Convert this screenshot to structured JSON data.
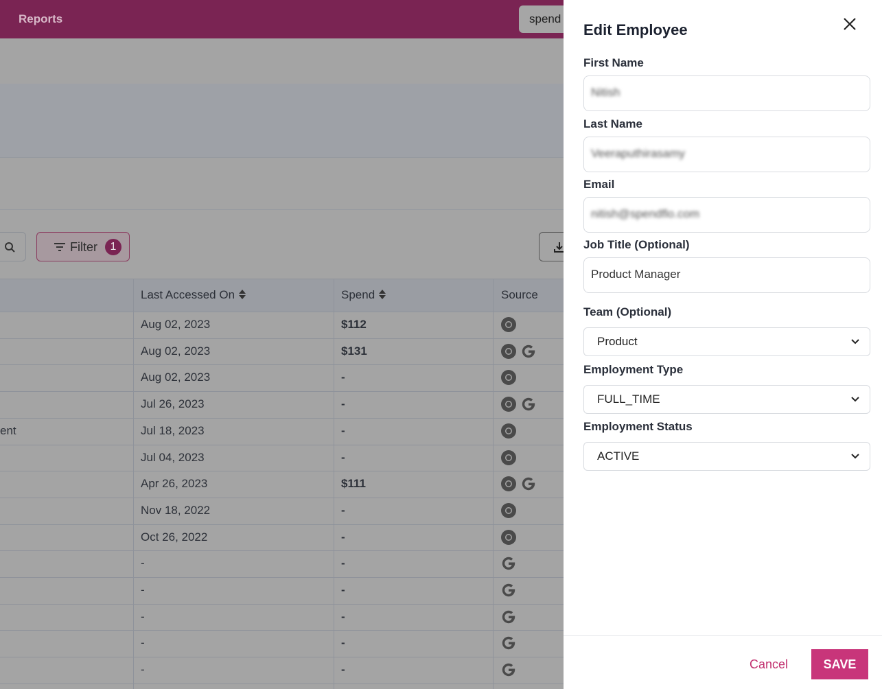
{
  "topbar": {
    "nav": "Reports",
    "search": "spend"
  },
  "toolbar": {
    "filter": "Filter",
    "filter_count": "1"
  },
  "table": {
    "headers": [
      "Last Accessed On",
      "Spend",
      "Source"
    ],
    "rows": [
      {
        "date": "Aug 02, 2023",
        "spend": "$112"
      },
      {
        "date": "Aug 02, 2023",
        "spend": "$131"
      },
      {
        "date": "Aug 02, 2023",
        "spend": "-"
      },
      {
        "date": "Jul 26, 2023",
        "spend": "-"
      },
      {
        "name": "ent",
        "date": "Jul 18, 2023",
        "spend": "-"
      },
      {
        "date": "Jul 04, 2023",
        "spend": "-"
      },
      {
        "date": "Apr 26, 2023",
        "spend": "$111"
      },
      {
        "date": "Nov 18, 2022",
        "spend": "-"
      },
      {
        "date": "Oct 26, 2022",
        "spend": "-"
      },
      {
        "date": "-",
        "spend": "-"
      },
      {
        "date": "-",
        "spend": "-"
      },
      {
        "date": "-",
        "spend": "-"
      },
      {
        "date": "-",
        "spend": "-"
      },
      {
        "date": "-",
        "spend": "-"
      }
    ]
  },
  "panel": {
    "title": "Edit Employee",
    "inputs": [
      {
        "label": "First Name",
        "value": "Nitish"
      },
      {
        "label": "Last Name",
        "value": "Veeraputhirasamy"
      },
      {
        "label": "Email",
        "value": "nitish@spendflo.com"
      },
      {
        "label": "Job Title (Optional)",
        "value": "Product Manager"
      }
    ],
    "selects": [
      {
        "label": "Team (Optional)",
        "value": "Product"
      },
      {
        "label": "Employment Type",
        "value": "FULL_TIME"
      },
      {
        "label": "Employment Status",
        "value": "ACTIVE"
      }
    ],
    "cancel": "Cancel",
    "save": "SAVE"
  }
}
